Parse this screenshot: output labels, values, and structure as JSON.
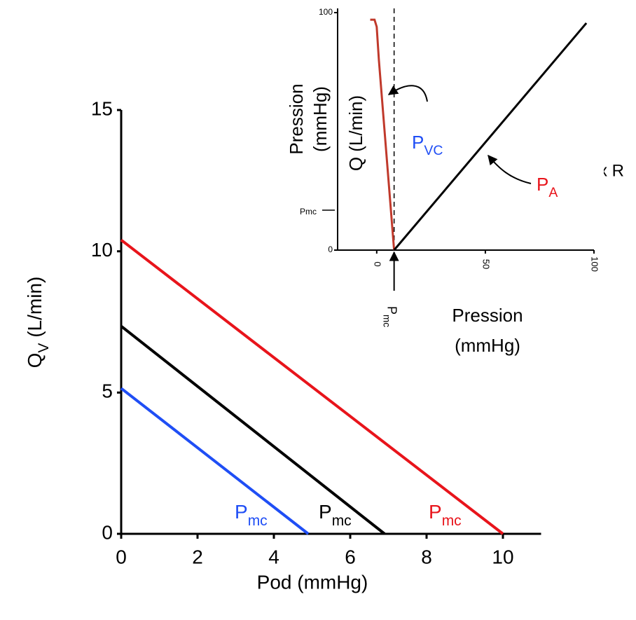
{
  "chart_data": [
    {
      "type": "line",
      "x_label": "Pod (mmHg)",
      "y_label": {
        "text": "Q",
        "sub": "V",
        "rest": " (L/min)"
      },
      "xlim": [
        0,
        11
      ],
      "xticks": [
        0,
        2,
        4,
        6,
        8,
        10
      ],
      "ylim": [
        0,
        15
      ],
      "yticks": [
        0,
        5,
        10,
        15
      ],
      "series": [
        {
          "color": "#e8141b",
          "x": [
            0,
            10
          ],
          "values": [
            10.4,
            0
          ]
        },
        {
          "color": "#000000",
          "x": [
            0,
            6.9
          ],
          "values": [
            7.35,
            0
          ]
        },
        {
          "color": "#1f4ef5",
          "x": [
            0,
            4.9
          ],
          "values": [
            5.15,
            0
          ]
        }
      ],
      "annotations": [
        {
          "text": "P",
          "sub": "mc",
          "color": "#1f4ef5"
        },
        {
          "text": "P",
          "sub": "mc",
          "color": "#000000"
        },
        {
          "text": "P",
          "sub": "mc",
          "color": "#e8141b"
        }
      ]
    },
    {
      "type": "line",
      "x_label": [
        "Pression",
        "(mmHg)"
      ],
      "y_label": [
        "Pression",
        "(mmHg)"
      ],
      "y_label2": "Q (L/min)",
      "xlim": [
        -18,
        100
      ],
      "xticks": [
        0,
        50,
        100
      ],
      "ylim": [
        0,
        100
      ],
      "yticks": [
        0,
        100
      ],
      "series": [
        {
          "color": "#c0392b",
          "x": [
            -3,
            -1,
            0,
            1,
            8
          ],
          "values": [
            97,
            97,
            94,
            80,
            0
          ]
        },
        {
          "color": "#000000",
          "x": [
            8,
            96.5
          ],
          "values": [
            0,
            95.6
          ]
        }
      ],
      "annotations": [
        {
          "text": "P",
          "sub": "VC",
          "color": "#1f4ef5"
        },
        {
          "text": "P",
          "sub": "A",
          "color": "#e8141b"
        },
        {
          "text": "x R",
          "color": "#000000"
        },
        {
          "text": "Pmc",
          "color": "#000000"
        },
        {
          "text": "P",
          "sub": "mc",
          "color": "#000000"
        }
      ]
    }
  ]
}
